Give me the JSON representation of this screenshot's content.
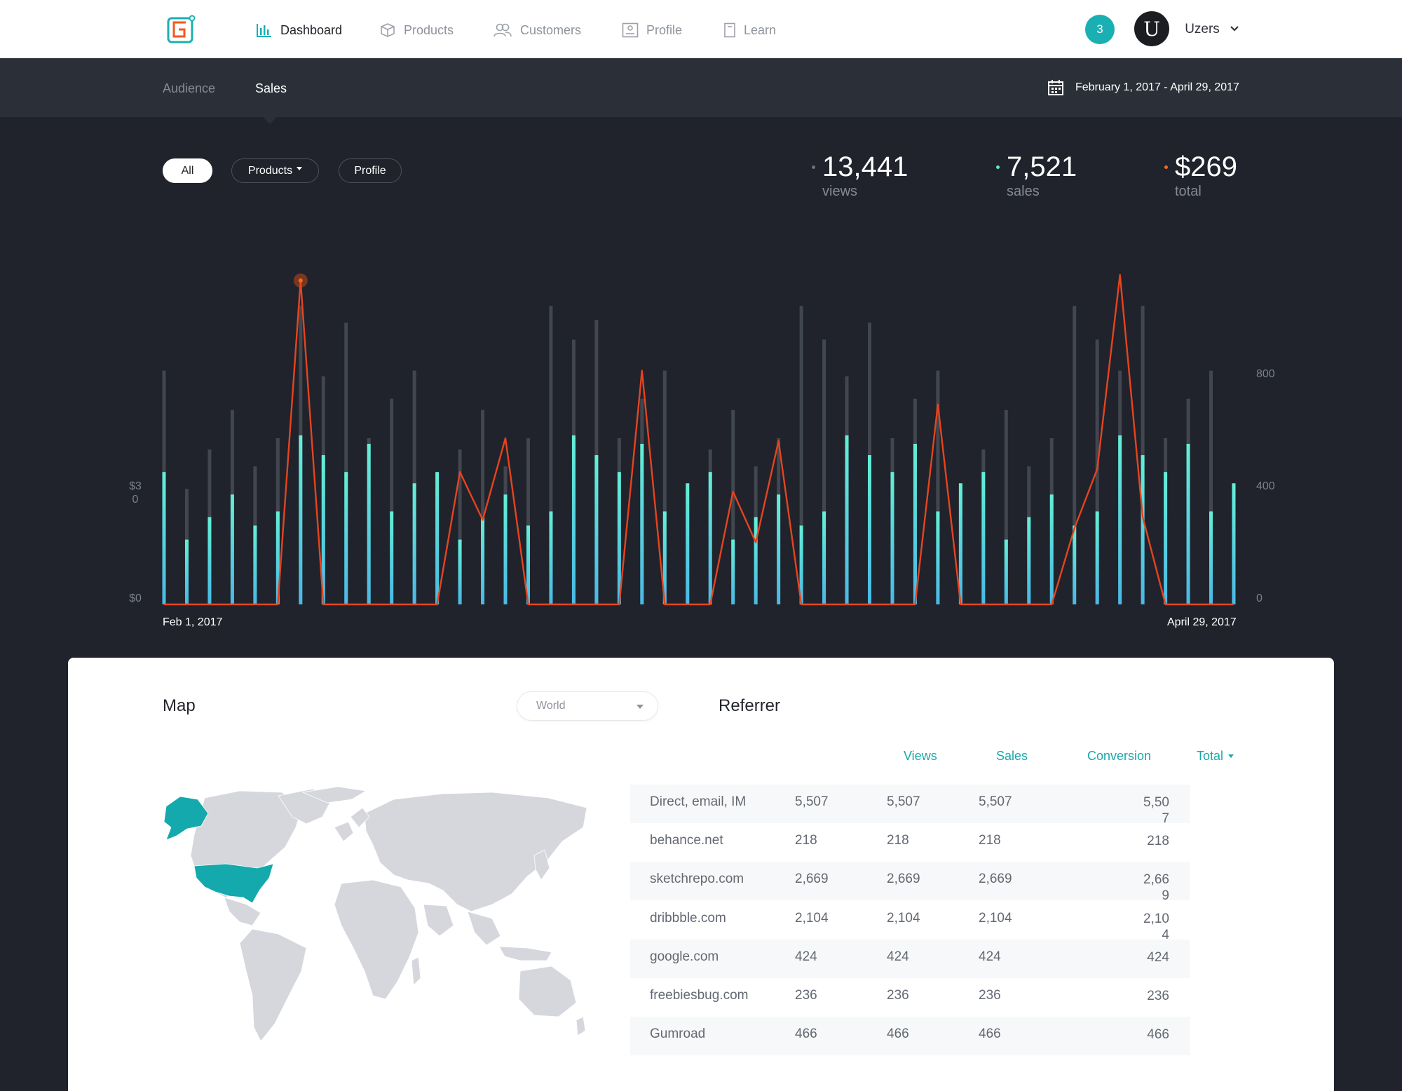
{
  "nav": {
    "items": [
      {
        "label": "Dashboard",
        "icon": "bar-chart-icon",
        "active": true
      },
      {
        "label": "Products",
        "icon": "box-icon",
        "active": false
      },
      {
        "label": "Customers",
        "icon": "users-icon",
        "active": false
      },
      {
        "label": "Profile",
        "icon": "id-card-icon",
        "active": false
      },
      {
        "label": "Learn",
        "icon": "book-icon",
        "active": false
      }
    ],
    "notification_count": "3",
    "avatar_letter": "U",
    "user_name": "Uzers"
  },
  "subnav": {
    "tabs": [
      {
        "label": "Audience",
        "active": false
      },
      {
        "label": "Sales",
        "active": true
      }
    ],
    "date_range": "February 1, 2017 - April 29, 2017"
  },
  "filters": {
    "all": "All",
    "products": "Products",
    "profile": "Profile"
  },
  "stats": [
    {
      "value": "13,441",
      "label": "views",
      "dot_color": "#6b707a"
    },
    {
      "value": "7,521",
      "label": "sales",
      "dot_color": "#5fe6d6"
    },
    {
      "value": "$269",
      "label": "total",
      "dot_color": "#f26a1b"
    }
  ],
  "chart_data": {
    "type": "bar",
    "x_start_label": "Feb 1, 2017",
    "x_end_label": "April 29, 2017",
    "left_axis_ticks": [
      "$30",
      "$0"
    ],
    "right_axis_ticks": [
      "800",
      "400",
      "0"
    ],
    "ylim_right": [
      0,
      1150
    ],
    "colors": {
      "views": "#41464f",
      "sales": "#5fe6d6",
      "total": "#f26a1b"
    },
    "series": [
      {
        "values": [
          830,
          410,
          550,
          690,
          490,
          590,
          1060,
          810,
          1000,
          590,
          730,
          830,
          410,
          550,
          690,
          490,
          590,
          1060,
          940,
          1010,
          590,
          730,
          830,
          410,
          550,
          690,
          490,
          590,
          1060,
          940,
          810,
          1000,
          590,
          730,
          830,
          410,
          550,
          690,
          490,
          590,
          1060,
          940,
          830,
          1060,
          590,
          730,
          830,
          410
        ]
      },
      {
        "values": [
          470,
          230,
          310,
          390,
          280,
          330,
          600,
          530,
          470,
          570,
          330,
          430,
          470,
          230,
          310,
          390,
          280,
          330,
          600,
          530,
          470,
          570,
          330,
          430,
          470,
          230,
          310,
          390,
          280,
          330,
          600,
          530,
          470,
          570,
          330,
          430,
          470,
          230,
          310,
          390,
          280,
          330,
          600,
          530,
          470,
          570,
          330,
          430
        ]
      },
      {
        "values": [
          0,
          0,
          0,
          0,
          0,
          0,
          1150,
          0,
          0,
          0,
          0,
          0,
          0,
          470,
          300,
          590,
          0,
          0,
          0,
          0,
          0,
          830,
          0,
          0,
          0,
          400,
          220,
          580,
          0,
          0,
          0,
          0,
          0,
          0,
          710,
          0,
          0,
          0,
          0,
          0,
          270,
          480,
          1170,
          310,
          0,
          0,
          0,
          0
        ]
      }
    ]
  },
  "map": {
    "title": "Map",
    "region": "World",
    "highlight_color": "#14a9ac",
    "land_color": "#d5d7dc"
  },
  "referrer": {
    "title": "Referrer",
    "columns": [
      "Views",
      "Sales",
      "Conversion",
      "Total"
    ],
    "rows": [
      {
        "source": "Direct, email, IM",
        "views": "5,507",
        "sales": "5,507",
        "conversion": "5,507",
        "total": "5,507"
      },
      {
        "source": "behance.net",
        "views": "218",
        "sales": "218",
        "conversion": "218",
        "total": "218"
      },
      {
        "source": "sketchrepo.com",
        "views": "2,669",
        "sales": "2,669",
        "conversion": "2,669",
        "total": "2,669"
      },
      {
        "source": "dribbble.com",
        "views": "2,104",
        "sales": "2,104",
        "conversion": "2,104",
        "total": "2,104"
      },
      {
        "source": "google.com",
        "views": "424",
        "sales": "424",
        "conversion": "424",
        "total": "424"
      },
      {
        "source": "freebiesbug.com",
        "views": "236",
        "sales": "236",
        "conversion": "236",
        "total": "236"
      },
      {
        "source": "Gumroad",
        "views": "466",
        "sales": "466",
        "conversion": "466",
        "total": "466"
      }
    ]
  }
}
